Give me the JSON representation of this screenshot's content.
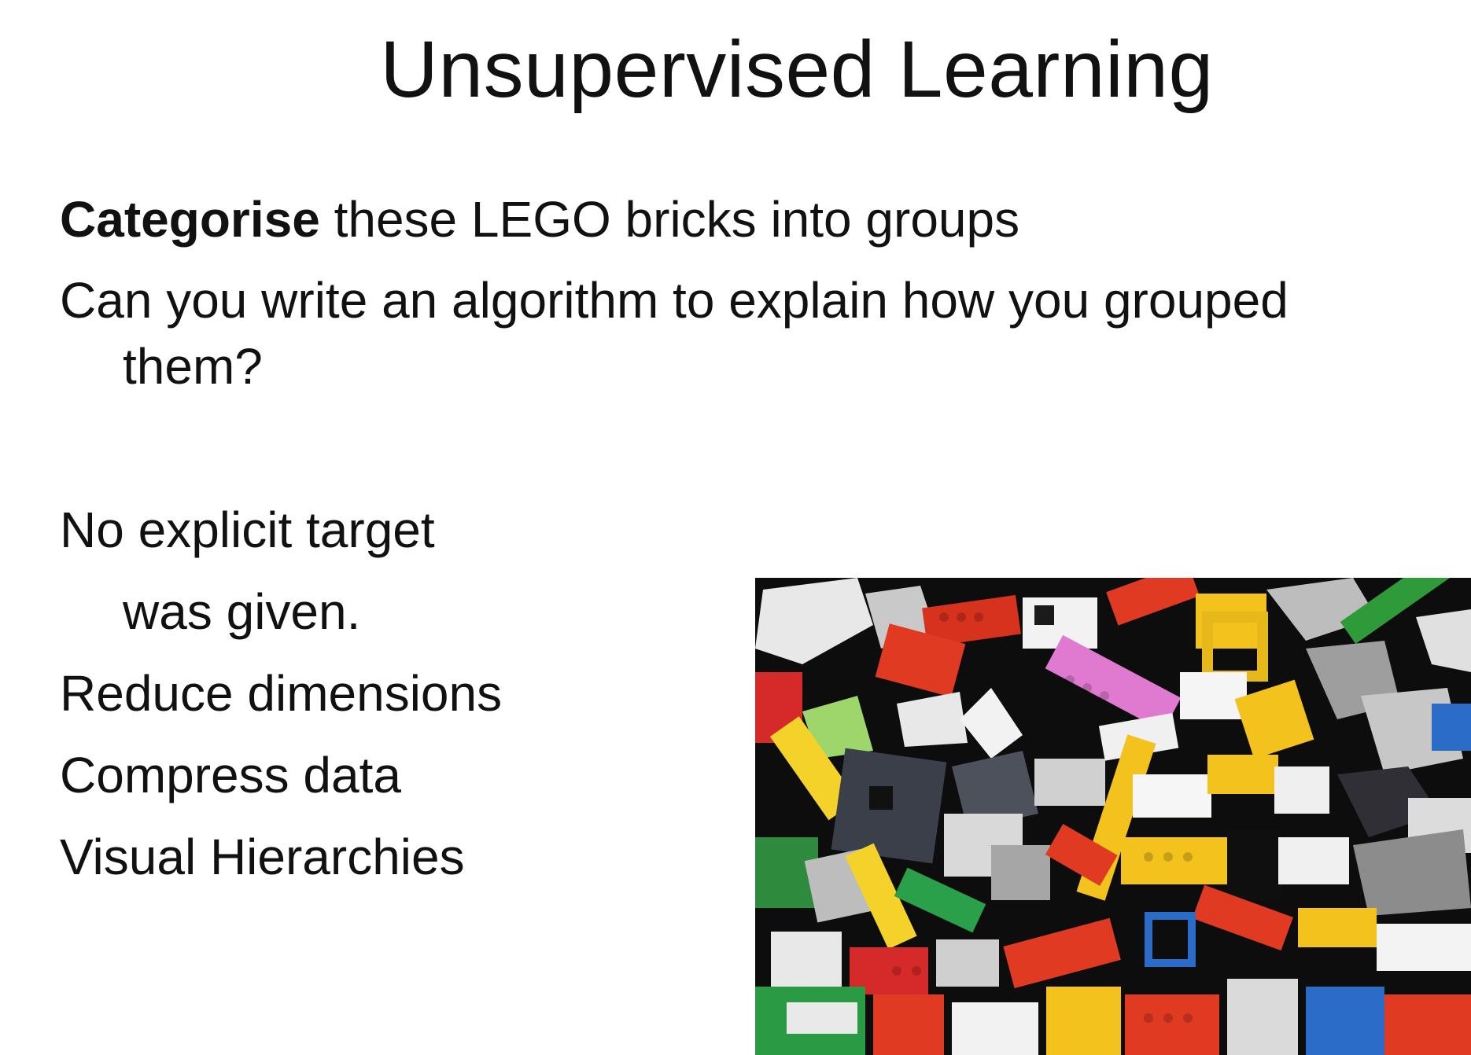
{
  "slide": {
    "title": "Unsupervised Learning",
    "intro": {
      "bold_word": "Categorise",
      "rest": " these LEGO bricks into groups"
    },
    "question": {
      "line1": "Can you write an algorithm to explain how you grouped",
      "line2": "them?"
    },
    "points": {
      "no_target_line1": "No explicit target",
      "no_target_line2": "was given.",
      "reduce": "Reduce dimensions",
      "compress": "Compress data",
      "visual": "Visual Hierarchies"
    },
    "image": {
      "icon": "lego-bricks-photo"
    },
    "colors": {
      "text": "#111111",
      "background": "#ffffff"
    }
  }
}
